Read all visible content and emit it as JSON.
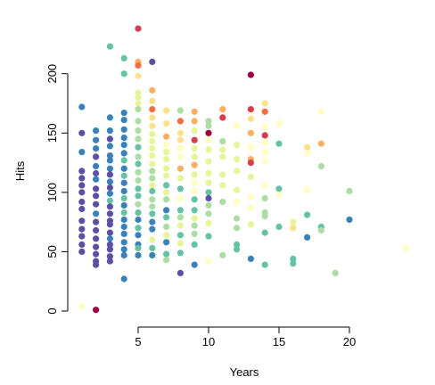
{
  "chart_data": {
    "type": "scatter",
    "title": "",
    "xlabel": "Years",
    "ylabel": "Hits",
    "xlim": [
      0.5,
      24.5
    ],
    "ylim": [
      -3,
      240
    ],
    "x_ticks": [
      5,
      10,
      15,
      20
    ],
    "y_ticks": [
      0,
      50,
      100,
      150,
      200
    ],
    "grid": false,
    "legend": "none",
    "points": [
      {
        "x": 1,
        "y": 172,
        "c": "#3a80b9"
      },
      {
        "x": 1,
        "y": 150,
        "c": "#5e4fa2"
      },
      {
        "x": 1,
        "y": 134,
        "c": "#3a80b9"
      },
      {
        "x": 1,
        "y": 118,
        "c": "#5e4fa2"
      },
      {
        "x": 1,
        "y": 112,
        "c": "#5e4fa2"
      },
      {
        "x": 1,
        "y": 106,
        "c": "#5e4fa2"
      },
      {
        "x": 1,
        "y": 100,
        "c": "#5e4fa2"
      },
      {
        "x": 1,
        "y": 92,
        "c": "#5e4fa2"
      },
      {
        "x": 1,
        "y": 86,
        "c": "#5e4fa2"
      },
      {
        "x": 1,
        "y": 76,
        "c": "#5e4fa2"
      },
      {
        "x": 1,
        "y": 69,
        "c": "#5e4fa2"
      },
      {
        "x": 1,
        "y": 63,
        "c": "#5e4fa2"
      },
      {
        "x": 1,
        "y": 56,
        "c": "#5e4fa2"
      },
      {
        "x": 1,
        "y": 50,
        "c": "#5e4fa2"
      },
      {
        "x": 1,
        "y": 4,
        "c": "#ffffbf"
      },
      {
        "x": 2,
        "y": 152,
        "c": "#3a80b9"
      },
      {
        "x": 2,
        "y": 144,
        "c": "#3a80b9"
      },
      {
        "x": 2,
        "y": 137,
        "c": "#3a80b9"
      },
      {
        "x": 2,
        "y": 130,
        "c": "#5e4fa2"
      },
      {
        "x": 2,
        "y": 122,
        "c": "#3a80b9"
      },
      {
        "x": 2,
        "y": 116,
        "c": "#5e4fa2"
      },
      {
        "x": 2,
        "y": 111,
        "c": "#3a80b9"
      },
      {
        "x": 2,
        "y": 103,
        "c": "#5e4fa2"
      },
      {
        "x": 2,
        "y": 97,
        "c": "#5e4fa2"
      },
      {
        "x": 2,
        "y": 90,
        "c": "#5e4fa2"
      },
      {
        "x": 2,
        "y": 82,
        "c": "#3a80b9"
      },
      {
        "x": 2,
        "y": 75,
        "c": "#5e4fa2"
      },
      {
        "x": 2,
        "y": 68,
        "c": "#5e4fa2"
      },
      {
        "x": 2,
        "y": 61,
        "c": "#5e4fa2"
      },
      {
        "x": 2,
        "y": 54,
        "c": "#5e4fa2"
      },
      {
        "x": 2,
        "y": 48,
        "c": "#5e4fa2"
      },
      {
        "x": 2,
        "y": 42,
        "c": "#5e4fa2"
      },
      {
        "x": 2,
        "y": 39,
        "c": "#5e4fa2"
      },
      {
        "x": 2,
        "y": 1,
        "c": "#9e0142"
      },
      {
        "x": 3,
        "y": 223,
        "c": "#66c2a5"
      },
      {
        "x": 3,
        "y": 163,
        "c": "#3a80b9"
      },
      {
        "x": 3,
        "y": 152,
        "c": "#3a80b9"
      },
      {
        "x": 3,
        "y": 145,
        "c": "#5e4fa2"
      },
      {
        "x": 3,
        "y": 139,
        "c": "#3a80b9"
      },
      {
        "x": 3,
        "y": 131,
        "c": "#3a80b9"
      },
      {
        "x": 3,
        "y": 127,
        "c": "#3a80b9"
      },
      {
        "x": 3,
        "y": 120,
        "c": "#3a80b9"
      },
      {
        "x": 3,
        "y": 115,
        "c": "#5e4fa2"
      },
      {
        "x": 3,
        "y": 109,
        "c": "#3a80b9"
      },
      {
        "x": 3,
        "y": 104,
        "c": "#5e4fa2"
      },
      {
        "x": 3,
        "y": 99,
        "c": "#3a80b9"
      },
      {
        "x": 3,
        "y": 93,
        "c": "#66c2a5"
      },
      {
        "x": 3,
        "y": 88,
        "c": "#5e4fa2"
      },
      {
        "x": 3,
        "y": 82,
        "c": "#5e4fa2"
      },
      {
        "x": 3,
        "y": 76,
        "c": "#5e4fa2"
      },
      {
        "x": 3,
        "y": 73,
        "c": "#5e4fa2"
      },
      {
        "x": 3,
        "y": 66,
        "c": "#5e4fa2"
      },
      {
        "x": 3,
        "y": 61,
        "c": "#3a80b9"
      },
      {
        "x": 3,
        "y": 56,
        "c": "#5e4fa2"
      },
      {
        "x": 3,
        "y": 52,
        "c": "#5e4fa2"
      },
      {
        "x": 3,
        "y": 46,
        "c": "#5e4fa2"
      },
      {
        "x": 3,
        "y": 42,
        "c": "#5e4fa2"
      },
      {
        "x": 4,
        "y": 213,
        "c": "#66c2a5"
      },
      {
        "x": 4,
        "y": 200,
        "c": "#66c2a5"
      },
      {
        "x": 4,
        "y": 167,
        "c": "#3a80b9"
      },
      {
        "x": 4,
        "y": 161,
        "c": "#3a80b9"
      },
      {
        "x": 4,
        "y": 153,
        "c": "#3a80b9"
      },
      {
        "x": 4,
        "y": 146,
        "c": "#3a80b9"
      },
      {
        "x": 4,
        "y": 140,
        "c": "#3a80b9"
      },
      {
        "x": 4,
        "y": 133,
        "c": "#3a80b9"
      },
      {
        "x": 4,
        "y": 127,
        "c": "#66c2a5"
      },
      {
        "x": 4,
        "y": 120,
        "c": "#3a80b9"
      },
      {
        "x": 4,
        "y": 114,
        "c": "#66c2a5"
      },
      {
        "x": 4,
        "y": 108,
        "c": "#3a80b9"
      },
      {
        "x": 4,
        "y": 101,
        "c": "#3a80b9"
      },
      {
        "x": 4,
        "y": 95,
        "c": "#66c2a5"
      },
      {
        "x": 4,
        "y": 89,
        "c": "#3a80b9"
      },
      {
        "x": 4,
        "y": 83,
        "c": "#66c2a5"
      },
      {
        "x": 4,
        "y": 77,
        "c": "#3a80b9"
      },
      {
        "x": 4,
        "y": 71,
        "c": "#3a80b9"
      },
      {
        "x": 4,
        "y": 65,
        "c": "#3a80b9"
      },
      {
        "x": 4,
        "y": 58,
        "c": "#3a80b9"
      },
      {
        "x": 4,
        "y": 52,
        "c": "#3a80b9"
      },
      {
        "x": 4,
        "y": 47,
        "c": "#3a80b9"
      },
      {
        "x": 4,
        "y": 27,
        "c": "#3a80b9"
      },
      {
        "x": 5,
        "y": 238,
        "c": "#d53e4f"
      },
      {
        "x": 5,
        "y": 210,
        "c": "#fdae61"
      },
      {
        "x": 5,
        "y": 207,
        "c": "#f46d43"
      },
      {
        "x": 5,
        "y": 198,
        "c": "#fee08b"
      },
      {
        "x": 5,
        "y": 184,
        "c": "#e6f598"
      },
      {
        "x": 5,
        "y": 180,
        "c": "#e6f598"
      },
      {
        "x": 5,
        "y": 175,
        "c": "#e6f598"
      },
      {
        "x": 5,
        "y": 170,
        "c": "#abdda4"
      },
      {
        "x": 5,
        "y": 160,
        "c": "#abdda4"
      },
      {
        "x": 5,
        "y": 152,
        "c": "#abdda4"
      },
      {
        "x": 5,
        "y": 145,
        "c": "#abdda4"
      },
      {
        "x": 5,
        "y": 138,
        "c": "#66c2a5"
      },
      {
        "x": 5,
        "y": 130,
        "c": "#abdda4"
      },
      {
        "x": 5,
        "y": 124,
        "c": "#66c2a5"
      },
      {
        "x": 5,
        "y": 117,
        "c": "#abdda4"
      },
      {
        "x": 5,
        "y": 110,
        "c": "#abdda4"
      },
      {
        "x": 5,
        "y": 103,
        "c": "#66c2a5"
      },
      {
        "x": 5,
        "y": 97,
        "c": "#66c2a5"
      },
      {
        "x": 5,
        "y": 90,
        "c": "#abdda4"
      },
      {
        "x": 5,
        "y": 83,
        "c": "#66c2a5"
      },
      {
        "x": 5,
        "y": 77,
        "c": "#3a80b9"
      },
      {
        "x": 5,
        "y": 70,
        "c": "#66c2a5"
      },
      {
        "x": 5,
        "y": 64,
        "c": "#3a80b9"
      },
      {
        "x": 5,
        "y": 56,
        "c": "#3a80b9"
      },
      {
        "x": 5,
        "y": 53,
        "c": "#66c2a5"
      },
      {
        "x": 5,
        "y": 47,
        "c": "#3a80b9"
      },
      {
        "x": 6,
        "y": 210,
        "c": "#5e4fa2"
      },
      {
        "x": 6,
        "y": 186,
        "c": "#fdae61"
      },
      {
        "x": 6,
        "y": 177,
        "c": "#fee08b"
      },
      {
        "x": 6,
        "y": 170,
        "c": "#f46d43"
      },
      {
        "x": 6,
        "y": 163,
        "c": "#fee08b"
      },
      {
        "x": 6,
        "y": 156,
        "c": "#fee08b"
      },
      {
        "x": 6,
        "y": 149,
        "c": "#e6f598"
      },
      {
        "x": 6,
        "y": 143,
        "c": "#e6f598"
      },
      {
        "x": 6,
        "y": 137,
        "c": "#e6f598"
      },
      {
        "x": 6,
        "y": 131,
        "c": "#e6f598"
      },
      {
        "x": 6,
        "y": 124,
        "c": "#e6f598"
      },
      {
        "x": 6,
        "y": 118,
        "c": "#abdda4"
      },
      {
        "x": 6,
        "y": 112,
        "c": "#abdda4"
      },
      {
        "x": 6,
        "y": 106,
        "c": "#e6f598"
      },
      {
        "x": 6,
        "y": 101,
        "c": "#66c2a5"
      },
      {
        "x": 6,
        "y": 94,
        "c": "#abdda4"
      },
      {
        "x": 6,
        "y": 88,
        "c": "#abdda4"
      },
      {
        "x": 6,
        "y": 82,
        "c": "#66c2a5"
      },
      {
        "x": 6,
        "y": 75,
        "c": "#3a80b9"
      },
      {
        "x": 6,
        "y": 69,
        "c": "#3a80b9"
      },
      {
        "x": 6,
        "y": 60,
        "c": "#e6f598"
      },
      {
        "x": 6,
        "y": 53,
        "c": "#66c2a5"
      },
      {
        "x": 6,
        "y": 47,
        "c": "#3a80b9"
      },
      {
        "x": 7,
        "y": 169,
        "c": "#fee08b"
      },
      {
        "x": 7,
        "y": 158,
        "c": "#fee08b"
      },
      {
        "x": 7,
        "y": 147,
        "c": "#fdae61"
      },
      {
        "x": 7,
        "y": 140,
        "c": "#ffffbf"
      },
      {
        "x": 7,
        "y": 134,
        "c": "#e6f598"
      },
      {
        "x": 7,
        "y": 128,
        "c": "#e6f598"
      },
      {
        "x": 7,
        "y": 120,
        "c": "#e6f598"
      },
      {
        "x": 7,
        "y": 114,
        "c": "#e6f598"
      },
      {
        "x": 7,
        "y": 106,
        "c": "#66c2a5"
      },
      {
        "x": 7,
        "y": 100,
        "c": "#e6f598"
      },
      {
        "x": 7,
        "y": 94,
        "c": "#abdda4"
      },
      {
        "x": 7,
        "y": 85,
        "c": "#3a80b9"
      },
      {
        "x": 7,
        "y": 79,
        "c": "#66c2a5"
      },
      {
        "x": 7,
        "y": 71,
        "c": "#abdda4"
      },
      {
        "x": 7,
        "y": 64,
        "c": "#e6f598"
      },
      {
        "x": 7,
        "y": 58,
        "c": "#3a80b9"
      },
      {
        "x": 7,
        "y": 48,
        "c": "#66c2a5"
      },
      {
        "x": 7,
        "y": 43,
        "c": "#abdda4"
      },
      {
        "x": 8,
        "y": 169,
        "c": "#abdda4"
      },
      {
        "x": 8,
        "y": 160,
        "c": "#f46d43"
      },
      {
        "x": 8,
        "y": 150,
        "c": "#fee08b"
      },
      {
        "x": 8,
        "y": 144,
        "c": "#fee08b"
      },
      {
        "x": 8,
        "y": 137,
        "c": "#ffffbf"
      },
      {
        "x": 8,
        "y": 130,
        "c": "#ffffbf"
      },
      {
        "x": 8,
        "y": 120,
        "c": "#fdae61"
      },
      {
        "x": 8,
        "y": 112,
        "c": "#e6f598"
      },
      {
        "x": 8,
        "y": 103,
        "c": "#66c2a5"
      },
      {
        "x": 8,
        "y": 95,
        "c": "#ffffbf"
      },
      {
        "x": 8,
        "y": 85,
        "c": "#66c2a5"
      },
      {
        "x": 8,
        "y": 79,
        "c": "#abdda4"
      },
      {
        "x": 8,
        "y": 72,
        "c": "#e6f598"
      },
      {
        "x": 8,
        "y": 64,
        "c": "#66c2a5"
      },
      {
        "x": 8,
        "y": 57,
        "c": "#e6f598"
      },
      {
        "x": 8,
        "y": 49,
        "c": "#66c2a5"
      },
      {
        "x": 8,
        "y": 32,
        "c": "#5e4fa2"
      },
      {
        "x": 9,
        "y": 168,
        "c": "#fdae61"
      },
      {
        "x": 9,
        "y": 160,
        "c": "#fdae61"
      },
      {
        "x": 9,
        "y": 152,
        "c": "#e6f598"
      },
      {
        "x": 9,
        "y": 144,
        "c": "#d53e4f"
      },
      {
        "x": 9,
        "y": 137,
        "c": "#e6f598"
      },
      {
        "x": 9,
        "y": 130,
        "c": "#e6f598"
      },
      {
        "x": 9,
        "y": 123,
        "c": "#fdae61"
      },
      {
        "x": 9,
        "y": 115,
        "c": "#e6f598"
      },
      {
        "x": 9,
        "y": 108,
        "c": "#ffffbf"
      },
      {
        "x": 9,
        "y": 101,
        "c": "#ffffbf"
      },
      {
        "x": 9,
        "y": 94,
        "c": "#66c2a5"
      },
      {
        "x": 9,
        "y": 85,
        "c": "#66c2a5"
      },
      {
        "x": 9,
        "y": 78,
        "c": "#e6f598"
      },
      {
        "x": 9,
        "y": 72,
        "c": "#abdda4"
      },
      {
        "x": 9,
        "y": 65,
        "c": "#abdda4"
      },
      {
        "x": 9,
        "y": 56,
        "c": "#66c2a5"
      },
      {
        "x": 9,
        "y": 39,
        "c": "#3a80b9"
      },
      {
        "x": 10,
        "y": 160,
        "c": "#abdda4"
      },
      {
        "x": 10,
        "y": 156,
        "c": "#abdda4"
      },
      {
        "x": 10,
        "y": 150,
        "c": "#9e0142"
      },
      {
        "x": 10,
        "y": 144,
        "c": "#ffffbf"
      },
      {
        "x": 10,
        "y": 136,
        "c": "#e6f598"
      },
      {
        "x": 10,
        "y": 126,
        "c": "#e6f598"
      },
      {
        "x": 10,
        "y": 116,
        "c": "#e6f598"
      },
      {
        "x": 10,
        "y": 108,
        "c": "#e6f598"
      },
      {
        "x": 10,
        "y": 100,
        "c": "#66c2a5"
      },
      {
        "x": 10,
        "y": 95,
        "c": "#5e4fa2"
      },
      {
        "x": 10,
        "y": 89,
        "c": "#abdda4"
      },
      {
        "x": 10,
        "y": 82,
        "c": "#abdda4"
      },
      {
        "x": 10,
        "y": 74,
        "c": "#e6f598"
      },
      {
        "x": 10,
        "y": 63,
        "c": "#66c2a5"
      },
      {
        "x": 10,
        "y": 42,
        "c": "#ffffbf"
      },
      {
        "x": 11,
        "y": 170,
        "c": "#fdae61"
      },
      {
        "x": 11,
        "y": 163,
        "c": "#d53e4f"
      },
      {
        "x": 11,
        "y": 143,
        "c": "#abdda4"
      },
      {
        "x": 11,
        "y": 136,
        "c": "#e6f598"
      },
      {
        "x": 11,
        "y": 130,
        "c": "#e6f598"
      },
      {
        "x": 11,
        "y": 115,
        "c": "#e6f598"
      },
      {
        "x": 11,
        "y": 106,
        "c": "#e6f598"
      },
      {
        "x": 11,
        "y": 92,
        "c": "#abdda4"
      },
      {
        "x": 11,
        "y": 47,
        "c": "#abdda4"
      },
      {
        "x": 12,
        "y": 156,
        "c": "#ffffbf"
      },
      {
        "x": 12,
        "y": 140,
        "c": "#e6f598"
      },
      {
        "x": 12,
        "y": 128,
        "c": "#e6f598"
      },
      {
        "x": 12,
        "y": 118,
        "c": "#e6f598"
      },
      {
        "x": 12,
        "y": 102,
        "c": "#e6f598"
      },
      {
        "x": 12,
        "y": 92,
        "c": "#ffffbf"
      },
      {
        "x": 12,
        "y": 78,
        "c": "#abdda4"
      },
      {
        "x": 12,
        "y": 70,
        "c": "#abdda4"
      },
      {
        "x": 12,
        "y": 56,
        "c": "#66c2a5"
      },
      {
        "x": 12,
        "y": 52,
        "c": "#66c2a5"
      },
      {
        "x": 13,
        "y": 199,
        "c": "#9e0142"
      },
      {
        "x": 13,
        "y": 170,
        "c": "#d53e4f"
      },
      {
        "x": 13,
        "y": 162,
        "c": "#fee08b"
      },
      {
        "x": 13,
        "y": 150,
        "c": "#fdae61"
      },
      {
        "x": 13,
        "y": 138,
        "c": "#ffffbf"
      },
      {
        "x": 13,
        "y": 128,
        "c": "#fdae61"
      },
      {
        "x": 13,
        "y": 125,
        "c": "#d53e4f"
      },
      {
        "x": 13,
        "y": 113,
        "c": "#e6f598"
      },
      {
        "x": 13,
        "y": 96,
        "c": "#ffffbf"
      },
      {
        "x": 13,
        "y": 87,
        "c": "#ffffbf"
      },
      {
        "x": 13,
        "y": 73,
        "c": "#e6f598"
      },
      {
        "x": 13,
        "y": 44,
        "c": "#3a80b9"
      },
      {
        "x": 14,
        "y": 175,
        "c": "#fee08b"
      },
      {
        "x": 14,
        "y": 168,
        "c": "#f46d43"
      },
      {
        "x": 14,
        "y": 155,
        "c": "#ffffbf"
      },
      {
        "x": 14,
        "y": 148,
        "c": "#d53e4f"
      },
      {
        "x": 14,
        "y": 142,
        "c": "#ffffbf"
      },
      {
        "x": 14,
        "y": 134,
        "c": "#ffffbf"
      },
      {
        "x": 14,
        "y": 126,
        "c": "#ffffbf"
      },
      {
        "x": 14,
        "y": 106,
        "c": "#ffffbf"
      },
      {
        "x": 14,
        "y": 95,
        "c": "#abdda4"
      },
      {
        "x": 14,
        "y": 83,
        "c": "#abdda4"
      },
      {
        "x": 14,
        "y": 80,
        "c": "#abdda4"
      },
      {
        "x": 14,
        "y": 66,
        "c": "#66c2a5"
      },
      {
        "x": 14,
        "y": 39,
        "c": "#66c2a5"
      },
      {
        "x": 15,
        "y": 158,
        "c": "#ffffbf"
      },
      {
        "x": 15,
        "y": 141,
        "c": "#66c2a5"
      },
      {
        "x": 15,
        "y": 103,
        "c": "#66c2a5"
      },
      {
        "x": 15,
        "y": 98,
        "c": "#ffffbf"
      },
      {
        "x": 15,
        "y": 71,
        "c": "#66c2a5"
      },
      {
        "x": 16,
        "y": 75,
        "c": "#e6f598"
      },
      {
        "x": 16,
        "y": 70,
        "c": "#fee08b"
      },
      {
        "x": 16,
        "y": 44,
        "c": "#66c2a5"
      },
      {
        "x": 16,
        "y": 40,
        "c": "#66c2a5"
      },
      {
        "x": 17,
        "y": 138,
        "c": "#fee08b"
      },
      {
        "x": 17,
        "y": 133,
        "c": "#ffffbf"
      },
      {
        "x": 17,
        "y": 102,
        "c": "#ffffbf"
      },
      {
        "x": 17,
        "y": 81,
        "c": "#66c2a5"
      },
      {
        "x": 17,
        "y": 62,
        "c": "#3a80b9"
      },
      {
        "x": 18,
        "y": 168,
        "c": "#ffffbf"
      },
      {
        "x": 18,
        "y": 141,
        "c": "#fdae61"
      },
      {
        "x": 18,
        "y": 122,
        "c": "#abdda4"
      },
      {
        "x": 18,
        "y": 71,
        "c": "#66c2a5"
      },
      {
        "x": 18,
        "y": 68,
        "c": "#abdda4"
      },
      {
        "x": 19,
        "y": 32,
        "c": "#abdda4"
      },
      {
        "x": 20,
        "y": 101,
        "c": "#abdda4"
      },
      {
        "x": 20,
        "y": 77,
        "c": "#3a80b9"
      },
      {
        "x": 24,
        "y": 53,
        "c": "#ffffbf"
      }
    ]
  }
}
